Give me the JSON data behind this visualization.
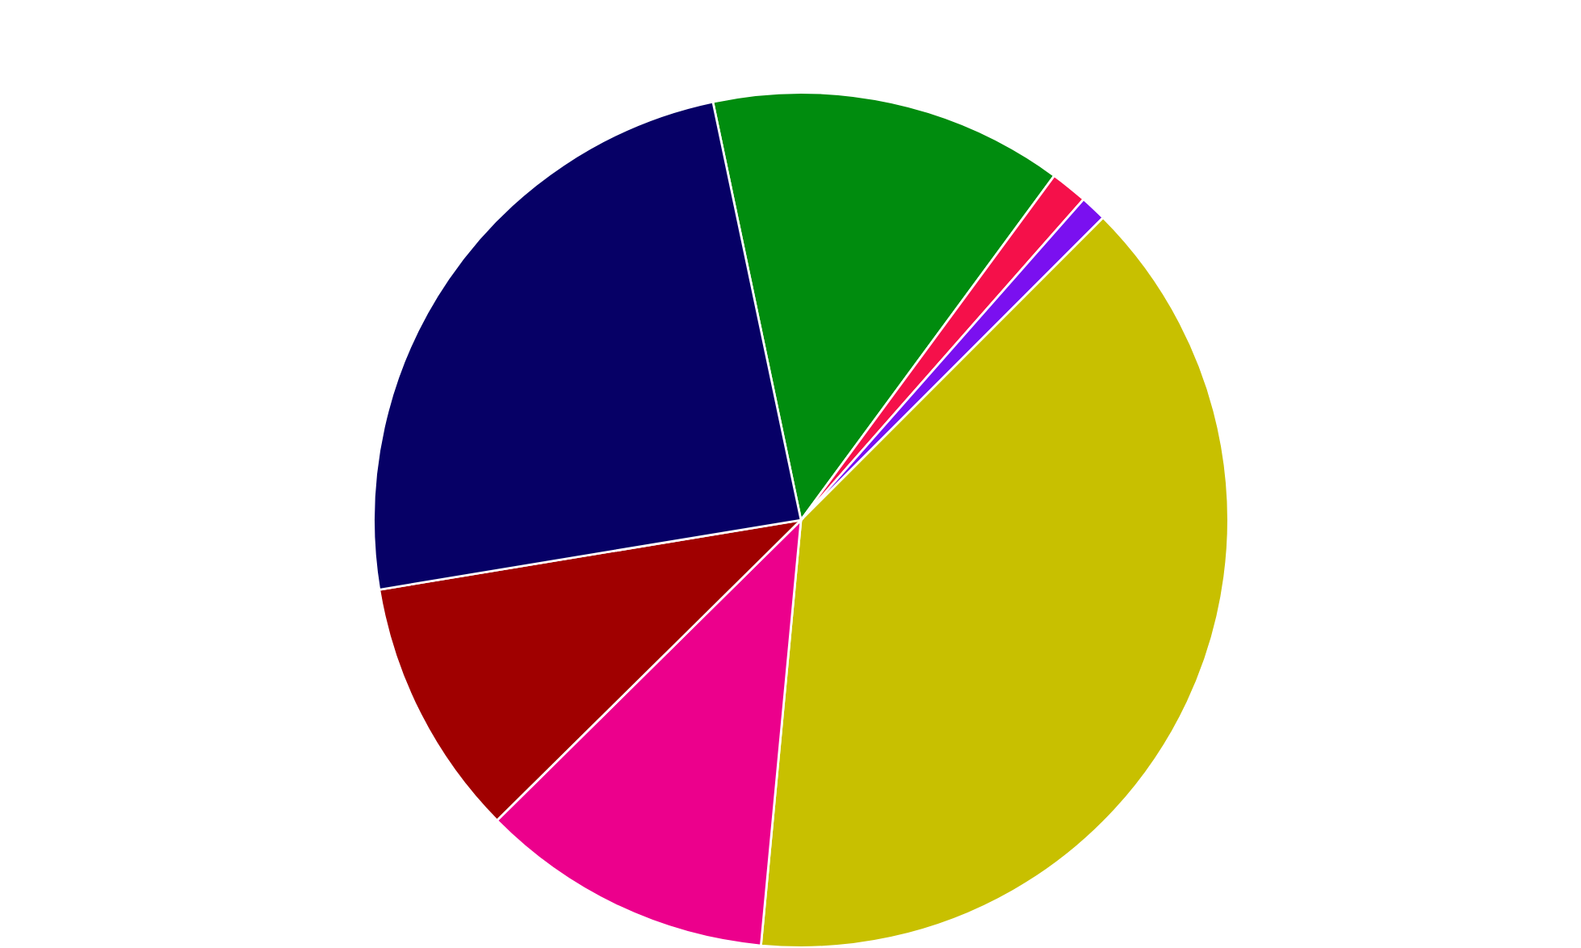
{
  "chart_data": {
    "type": "pie",
    "categories": [
      null,
      null,
      null,
      null,
      null,
      null,
      null
    ],
    "values": [
      13.4,
      1.4,
      1.0,
      39.0,
      11.1,
      9.8,
      24.3
    ],
    "colors": [
      "#008c0e",
      "#f5104a",
      "#7a10f0",
      "#c8c000",
      "#ec008c",
      "#a00000",
      "#060066"
    ]
  }
}
